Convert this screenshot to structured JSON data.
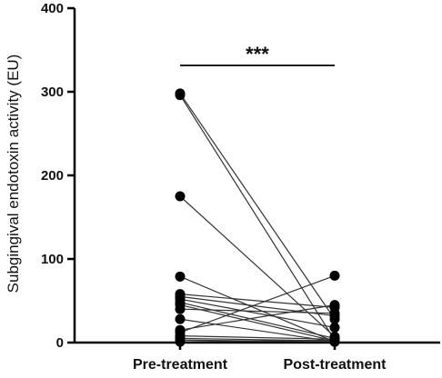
{
  "chart_data": {
    "type": "scatter",
    "subtype": "paired-before-after",
    "title": "",
    "xlabel": "",
    "ylabel": "Subgingival endotoxin activity (EU)",
    "categories": [
      "Pre-treatment",
      "Post-treatment"
    ],
    "ylim": [
      0,
      400
    ],
    "yticks": [
      "0",
      "100",
      "200",
      "300",
      "400"
    ],
    "grid": false,
    "legend": "none",
    "significance": "***",
    "colors": {
      "points": "#000000",
      "lines": "#333333",
      "axes": "#000000"
    },
    "pairs": [
      {
        "pre": 298,
        "post": 28
      },
      {
        "pre": 296,
        "post": 3
      },
      {
        "pre": 175,
        "post": 7
      },
      {
        "pre": 79,
        "post": 1
      },
      {
        "pre": 58,
        "post": 42
      },
      {
        "pre": 55,
        "post": 32
      },
      {
        "pre": 52,
        "post": 18
      },
      {
        "pre": 48,
        "post": 5
      },
      {
        "pre": 45,
        "post": 2
      },
      {
        "pre": 40,
        "post": 35
      },
      {
        "pre": 28,
        "post": 1
      },
      {
        "pre": 15,
        "post": 45
      },
      {
        "pre": 12,
        "post": 80
      },
      {
        "pre": 8,
        "post": 4
      },
      {
        "pre": 5,
        "post": 2
      },
      {
        "pre": 3,
        "post": 1
      },
      {
        "pre": 1,
        "post": 3
      }
    ]
  }
}
